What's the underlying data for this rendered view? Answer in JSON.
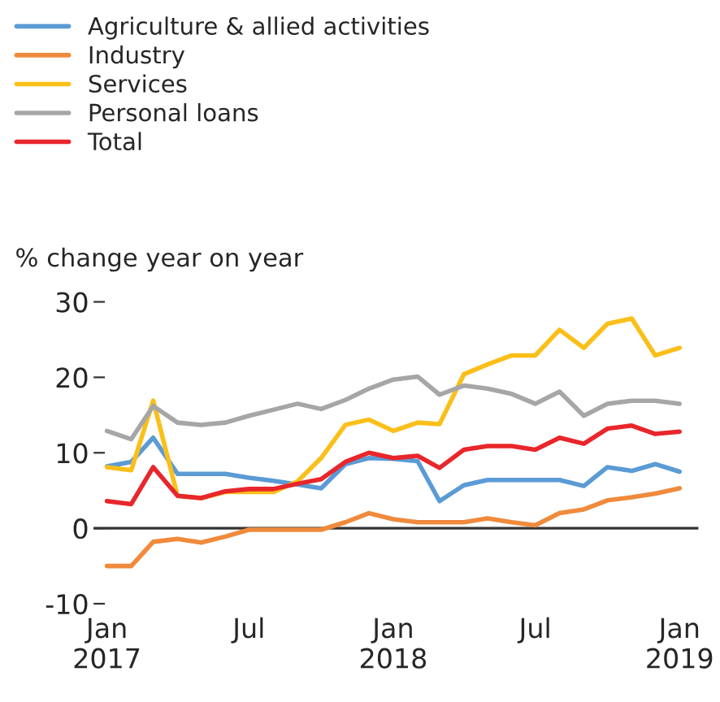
{
  "chart_data": {
    "type": "line",
    "ylabel": "% change year on year",
    "x": [
      "2017-01",
      "2017-02",
      "2017-03",
      "2017-04",
      "2017-05",
      "2017-06",
      "2017-07",
      "2017-08",
      "2017-09",
      "2017-10",
      "2017-11",
      "2017-12",
      "2018-01",
      "2018-02",
      "2018-03",
      "2018-04",
      "2018-05",
      "2018-06",
      "2018-07",
      "2018-08",
      "2018-09",
      "2018-10",
      "2018-11",
      "2018-12",
      "2019-01"
    ],
    "series": [
      {
        "name": "Agriculture & allied activities",
        "color": "#5b9bd5",
        "values": [
          8.2,
          8.8,
          12,
          7.2,
          7.2,
          7.2,
          6.7,
          6.3,
          5.8,
          5.3,
          8.5,
          9.3,
          9.2,
          8.9,
          3.6,
          5.7,
          6.4,
          6.4,
          6.4,
          6.4,
          5.6,
          8.1,
          7.6,
          8.5,
          7.5
        ]
      },
      {
        "name": "Industry",
        "color": "#f08a3c",
        "values": [
          -5,
          -5,
          -1.8,
          -1.4,
          -1.9,
          -1.1,
          -0.2,
          -0.2,
          -0.2,
          -0.2,
          0.8,
          2,
          1.2,
          0.8,
          0.8,
          0.8,
          1.3,
          0.8,
          0.4,
          2,
          2.5,
          3.7,
          4.1,
          4.6,
          5.3
        ]
      },
      {
        "name": "Services",
        "color": "#fbbf1a",
        "values": [
          8.1,
          7.7,
          16.9,
          4.3,
          4,
          4.8,
          4.8,
          4.8,
          6.2,
          9.3,
          13.7,
          14.4,
          12.9,
          14,
          13.8,
          20.4,
          21.7,
          22.9,
          22.9,
          26.3,
          23.9,
          27.1,
          27.8,
          22.9,
          23.9
        ]
      },
      {
        "name": "Personal loans",
        "color": "#a6a6a6",
        "values": [
          12.9,
          11.8,
          16.2,
          14,
          13.7,
          14,
          14.9,
          15.7,
          16.5,
          15.8,
          17,
          18.5,
          19.7,
          20.1,
          17.7,
          18.9,
          18.5,
          17.8,
          16.5,
          18.1,
          14.9,
          16.5,
          16.9,
          16.9,
          16.5
        ]
      },
      {
        "name": "Total",
        "color": "#e8262b",
        "values": [
          3.6,
          3.2,
          8.1,
          4.3,
          4,
          4.9,
          5.2,
          5.2,
          5.9,
          6.5,
          8.8,
          10,
          9.3,
          9.6,
          8,
          10.4,
          10.9,
          10.9,
          10.4,
          12,
          11.2,
          13.2,
          13.6,
          12.5,
          12.8
        ]
      }
    ],
    "xlim": [
      "2016-12-15",
      "2019-01-25"
    ],
    "xticks": [
      {
        "value": "2017-01",
        "label": "Jan\n2017"
      },
      {
        "value": "2017-07",
        "label": "Jul"
      },
      {
        "value": "2018-01",
        "label": "Jan\n2018"
      },
      {
        "value": "2018-07",
        "label": "Jul"
      },
      {
        "value": "2019-01",
        "label": "Jan\n2019"
      }
    ],
    "ylim": [
      -10,
      30
    ],
    "yticks": [
      -10,
      0,
      10,
      20,
      30
    ],
    "ref_lines": [
      {
        "axis": "y",
        "value": 0,
        "color": "#333333"
      }
    ],
    "grid": false,
    "legend": "top left",
    "line_style": "solid",
    "marker": "none"
  }
}
